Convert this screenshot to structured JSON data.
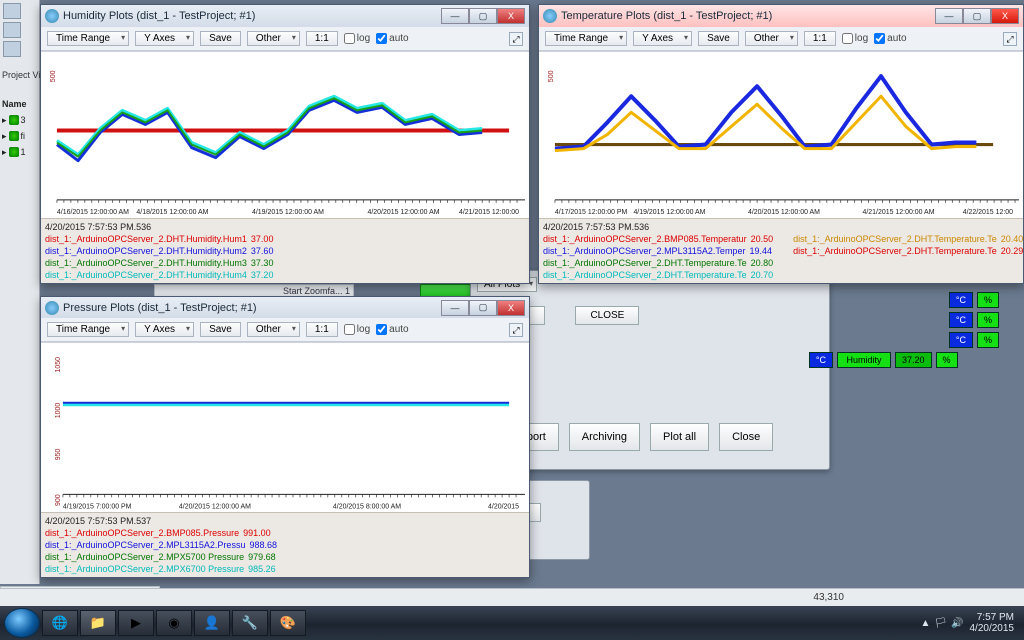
{
  "leftPanel": {
    "projectLabel": "Project Vie",
    "nameHeader": "Name",
    "items": [
      "3",
      "fi",
      "1"
    ]
  },
  "toolbarLabels": {
    "timeRange": "Time Range",
    "yAxes": "Y Axes",
    "save": "Save",
    "other": "Other",
    "ratio": "1:1",
    "log": "log",
    "auto": "auto"
  },
  "bgwin": {
    "allPlots": "All Plots",
    "ok": "OK",
    "close": "CLOSE",
    "buttons": [
      "Export",
      "Archiving",
      "Plot all",
      "Close"
    ]
  },
  "scada": [
    {
      "unit": "°C",
      "pct": "%"
    },
    {
      "unit": "°C",
      "pct": "%"
    },
    {
      "unit": "°C",
      "pct": "%"
    },
    {
      "name": "Humidity",
      "unit": "°C",
      "val": "37.20",
      "pct": "%"
    }
  ],
  "bgwin2": {
    "close": "CLOSE"
  },
  "statusbar": {
    "coord": "43,310"
  },
  "taskbar": {
    "time": "7:57 PM",
    "date": "4/20/2015"
  },
  "smallTop": "Start Zoomfa...  1",
  "humidity": {
    "title": "Humidity Plots (dist_1 - TestProject; #1)",
    "timestamp": "4/20/2015 7:57:53 PM.536",
    "legends": [
      {
        "cls": "r",
        "label": "dist_1:_ArduinoOPCServer_2.DHT.Humidity.Hum1",
        "val": "37.00"
      },
      {
        "cls": "b",
        "label": "dist_1:_ArduinoOPCServer_2.DHT.Humidity.Hum2",
        "val": "37.60"
      },
      {
        "cls": "g",
        "label": "dist_1:_ArduinoOPCServer_2.DHT.Humidity.Hum3",
        "val": "37.30"
      },
      {
        "cls": "c",
        "label": "dist_1:_ArduinoOPCServer_2.DHT.Humidity.Hum4",
        "val": "37.20"
      }
    ],
    "chart": {
      "xlabels": [
        "4/16/2015 12:00:00 AM",
        "4/18/2015 12:00:00 AM",
        "4/19/2015 12:00:00 AM",
        "4/20/2015 12:00:00 AM",
        "4/21/2015 12:00:00"
      ],
      "ytick_text": "500",
      "xlim": [
        0,
        470
      ],
      "ylim": [
        0,
        140
      ],
      "series": [
        {
          "color": "#d01010",
          "width": 4,
          "points": [
            [
              0,
              78
            ],
            [
              470,
              78
            ]
          ]
        },
        {
          "color": "#1430d8",
          "width": 3,
          "points": [
            [
              0,
              92
            ],
            [
              22,
              108
            ],
            [
              45,
              80
            ],
            [
              68,
              62
            ],
            [
              92,
              72
            ],
            [
              115,
              60
            ],
            [
              140,
              95
            ],
            [
              165,
              105
            ],
            [
              190,
              84
            ],
            [
              215,
              96
            ],
            [
              240,
              82
            ],
            [
              262,
              58
            ],
            [
              288,
              48
            ],
            [
              312,
              60
            ],
            [
              338,
              55
            ],
            [
              362,
              72
            ],
            [
              390,
              66
            ],
            [
              418,
              82
            ],
            [
              442,
              80
            ]
          ]
        },
        {
          "color": "#26e6e6",
          "width": 3,
          "points": [
            [
              0,
              88
            ],
            [
              22,
              102
            ],
            [
              45,
              76
            ],
            [
              68,
              58
            ],
            [
              92,
              68
            ],
            [
              115,
              56
            ],
            [
              140,
              90
            ],
            [
              165,
              100
            ],
            [
              190,
              80
            ],
            [
              215,
              92
            ],
            [
              240,
              78
            ],
            [
              262,
              54
            ],
            [
              288,
              44
            ],
            [
              312,
              56
            ],
            [
              338,
              51
            ],
            [
              362,
              68
            ],
            [
              390,
              62
            ],
            [
              418,
              78
            ],
            [
              442,
              76
            ]
          ]
        },
        {
          "color": "#18a018",
          "width": 2,
          "points": [
            [
              0,
              90
            ],
            [
              22,
              104
            ],
            [
              45,
              78
            ],
            [
              68,
              60
            ],
            [
              92,
              70
            ],
            [
              115,
              58
            ],
            [
              140,
              92
            ],
            [
              165,
              102
            ],
            [
              190,
              82
            ],
            [
              215,
              94
            ],
            [
              240,
              80
            ],
            [
              262,
              56
            ],
            [
              288,
              46
            ],
            [
              312,
              58
            ],
            [
              338,
              53
            ],
            [
              362,
              70
            ],
            [
              390,
              64
            ],
            [
              418,
              80
            ],
            [
              442,
              78
            ]
          ]
        }
      ]
    }
  },
  "temperature": {
    "title": "Temperature Plots (dist_1 - TestProject; #1)",
    "timestamp": "4/20/2015 7:57:53 PM.536",
    "legendsL": [
      {
        "cls": "r",
        "label": "dist_1:_ArduinoOPCServer_2.BMP085.Temperatur",
        "val": "20.50"
      },
      {
        "cls": "b",
        "label": "dist_1:_ArduinoOPCServer_2.MPL3115A2.Temper",
        "val": "19.44"
      },
      {
        "cls": "g",
        "label": "dist_1:_ArduinoOPCServer_2.DHT.Temperature.Te",
        "val": "20.80"
      },
      {
        "cls": "c",
        "label": "dist_1:_ArduinoOPCServer_2.DHT.Temperature.Te",
        "val": "20.70"
      }
    ],
    "legendsR": [
      {
        "cls": "o",
        "label": "dist_1:_ArduinoOPCServer_2.DHT.Temperature.Te",
        "val": "20.40"
      },
      {
        "cls": "r",
        "label": "dist_1:_ArduinoOPCServer_2.DHT.Temperature.Te",
        "val": "20.29"
      }
    ],
    "chart": {
      "xlabels": [
        "4/17/2015 12:00:00 PM",
        "4/19/2015 12:00:00 AM",
        "4/20/2015 12:00:00 AM",
        "4/21/2015 12:00:00 AM",
        "4/22/2015 12:00"
      ],
      "ytick_text": "500",
      "xlim": [
        0,
        470
      ],
      "ylim": [
        0,
        140
      ],
      "baseline": {
        "color": "#6b4a10",
        "width": 3,
        "y": 92
      },
      "series": [
        {
          "color": "#1a28e0",
          "width": 4,
          "points": [
            [
              0,
              96
            ],
            [
              30,
              94
            ],
            [
              55,
              70
            ],
            [
              80,
              44
            ],
            [
              105,
              68
            ],
            [
              130,
              94
            ],
            [
              158,
              92
            ],
            [
              185,
              60
            ],
            [
              212,
              34
            ],
            [
              238,
              64
            ],
            [
              262,
              94
            ],
            [
              290,
              92
            ],
            [
              316,
              56
            ],
            [
              342,
              24
            ],
            [
              368,
              60
            ],
            [
              395,
              92
            ],
            [
              420,
              90
            ],
            [
              442,
              90
            ]
          ]
        },
        {
          "color": "#f1b500",
          "width": 3,
          "points": [
            [
              0,
              98
            ],
            [
              30,
              96
            ],
            [
              55,
              82
            ],
            [
              80,
              60
            ],
            [
              105,
              78
            ],
            [
              130,
              96
            ],
            [
              158,
              96
            ],
            [
              185,
              74
            ],
            [
              212,
              52
            ],
            [
              238,
              76
            ],
            [
              262,
              96
            ],
            [
              290,
              96
            ],
            [
              316,
              70
            ],
            [
              342,
              44
            ],
            [
              368,
              74
            ],
            [
              395,
              96
            ],
            [
              420,
              94
            ],
            [
              442,
              94
            ]
          ]
        }
      ]
    }
  },
  "pressure": {
    "title": "Pressure Plots (dist_1 - TestProject; #1)",
    "timestamp": "4/20/2015 7:57:53 PM.537",
    "legends": [
      {
        "cls": "r",
        "label": "dist_1:_ArduinoOPCServer_2.BMP085.Pressure",
        "val": "991.00"
      },
      {
        "cls": "b",
        "label": "dist_1:_ArduinoOPCServer_2.MPL3115A2.Pressu",
        "val": "988.68"
      },
      {
        "cls": "g",
        "label": "dist_1:_ArduinoOPCServer_2.MPX5700 Pressure",
        "val": "979.68"
      },
      {
        "cls": "c",
        "label": "dist_1:_ArduinoOPCServer_2.MPX6700 Pressure",
        "val": "985.26"
      }
    ],
    "chart": {
      "yticks": [
        "1050",
        "1000",
        "950",
        "900"
      ],
      "xlabels": [
        "4/19/2015 7:00:00 PM",
        "4/20/2015 12:00:00 AM",
        "4/20/2015 8:00:00 AM",
        "4/20/2015"
      ],
      "xlim": [
        0,
        470
      ],
      "ylim": [
        0,
        160
      ],
      "series": [
        {
          "color": "#26e6e6",
          "width": 3,
          "points": [
            [
              0,
              62
            ],
            [
              470,
              62
            ]
          ]
        },
        {
          "color": "#1430d8",
          "width": 2,
          "points": [
            [
              0,
              60
            ],
            [
              470,
              60
            ]
          ]
        }
      ]
    }
  }
}
